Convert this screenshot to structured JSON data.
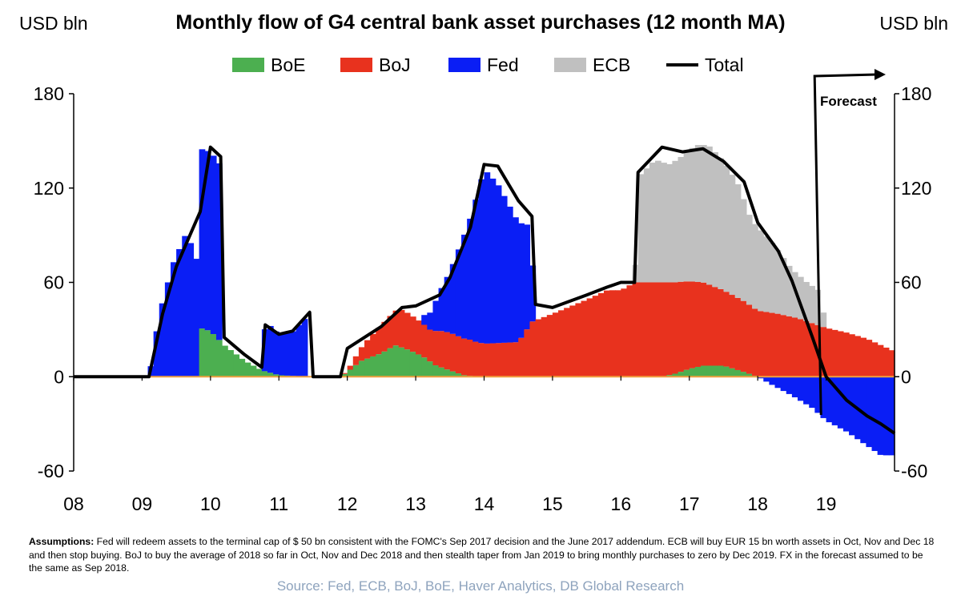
{
  "header": {
    "title": "Monthly flow of G4 central bank asset purchases (12 month MA)",
    "unit_left": "USD bln",
    "unit_right": "USD bln"
  },
  "legend": {
    "items": [
      {
        "label": "BoE",
        "color": "#4caf50"
      },
      {
        "label": "BoJ",
        "color": "#e8321e"
      },
      {
        "label": "Fed",
        "color": "#0a1ef5"
      },
      {
        "label": "ECB",
        "color": "#c0c0c0"
      },
      {
        "label": "Total",
        "color": "#000000"
      }
    ]
  },
  "chart_data": {
    "type": "area",
    "stacked": true,
    "title": "Monthly flow of G4 central bank asset purchases (12 month MA)",
    "ylabel_left": "USD bln",
    "ylabel_right": "USD bln",
    "ylim": [
      -60,
      180
    ],
    "yticks": [
      -60,
      0,
      60,
      120,
      180
    ],
    "xlim": [
      2008.0,
      2020.0
    ],
    "xtick_labels": [
      "08",
      "09",
      "10",
      "11",
      "12",
      "13",
      "14",
      "15",
      "16",
      "17",
      "18",
      "19"
    ],
    "annotation": "Forecast",
    "forecast_start": 2018.75,
    "colors": {
      "BoE": "#4caf50",
      "BoJ": "#e8321e",
      "Fed": "#0a1ef5",
      "ECB": "#c0c0c0",
      "Total": "#000000"
    },
    "series": [
      {
        "name": "BoE",
        "points": [
          [
            2008.0,
            0
          ],
          [
            2009.05,
            0
          ],
          [
            2009.8,
            0
          ],
          [
            2009.85,
            31
          ],
          [
            2010.0,
            29
          ],
          [
            2010.2,
            20
          ],
          [
            2010.5,
            10
          ],
          [
            2010.75,
            4
          ],
          [
            2011.0,
            1
          ],
          [
            2011.4,
            0
          ],
          [
            2011.9,
            0
          ],
          [
            2012.0,
            3
          ],
          [
            2012.2,
            10
          ],
          [
            2012.5,
            15
          ],
          [
            2012.7,
            20
          ],
          [
            2012.9,
            17
          ],
          [
            2013.1,
            13
          ],
          [
            2013.3,
            7
          ],
          [
            2013.5,
            4
          ],
          [
            2013.7,
            1
          ],
          [
            2013.9,
            0
          ],
          [
            2016.6,
            0
          ],
          [
            2016.8,
            2
          ],
          [
            2017.0,
            5
          ],
          [
            2017.2,
            7
          ],
          [
            2017.5,
            7
          ],
          [
            2017.8,
            3
          ],
          [
            2018.0,
            0
          ],
          [
            2020.0,
            0
          ]
        ]
      },
      {
        "name": "BoJ",
        "points": [
          [
            2008.0,
            0
          ],
          [
            2011.9,
            0
          ],
          [
            2012.0,
            1
          ],
          [
            2012.3,
            12
          ],
          [
            2012.5,
            18
          ],
          [
            2012.8,
            24
          ],
          [
            2013.0,
            22
          ],
          [
            2013.2,
            20
          ],
          [
            2013.35,
            23
          ],
          [
            2013.5,
            24
          ],
          [
            2013.8,
            23
          ],
          [
            2014.0,
            21
          ],
          [
            2014.5,
            22
          ],
          [
            2014.7,
            35
          ],
          [
            2015.0,
            40
          ],
          [
            2015.5,
            49
          ],
          [
            2015.8,
            55
          ],
          [
            2016.0,
            55
          ],
          [
            2016.2,
            60
          ],
          [
            2016.6,
            60
          ],
          [
            2016.9,
            57
          ],
          [
            2017.2,
            53
          ],
          [
            2017.5,
            48
          ],
          [
            2017.8,
            45
          ],
          [
            2018.0,
            42
          ],
          [
            2018.3,
            40
          ],
          [
            2018.6,
            37
          ],
          [
            2018.8,
            34
          ],
          [
            2019.0,
            31
          ],
          [
            2019.3,
            28
          ],
          [
            2019.6,
            24
          ],
          [
            2019.8,
            20
          ],
          [
            2020.0,
            16
          ]
        ]
      },
      {
        "name": "Fed",
        "points": [
          [
            2008.0,
            0
          ],
          [
            2009.1,
            0
          ],
          [
            2009.25,
            40
          ],
          [
            2009.45,
            72
          ],
          [
            2009.65,
            92
          ],
          [
            2009.8,
            74
          ],
          [
            2009.85,
            114
          ],
          [
            2010.0,
            114
          ],
          [
            2010.15,
            112
          ],
          [
            2010.2,
            0
          ],
          [
            2010.75,
            0
          ],
          [
            2010.8,
            32
          ],
          [
            2011.0,
            26
          ],
          [
            2011.2,
            28
          ],
          [
            2011.4,
            38
          ],
          [
            2011.45,
            0
          ],
          [
            2013.05,
            0
          ],
          [
            2013.1,
            5
          ],
          [
            2013.2,
            10
          ],
          [
            2013.35,
            25
          ],
          [
            2013.5,
            39
          ],
          [
            2013.8,
            78
          ],
          [
            2014.0,
            111
          ],
          [
            2014.2,
            101
          ],
          [
            2014.5,
            76
          ],
          [
            2014.7,
            61
          ],
          [
            2014.72,
            0
          ],
          [
            2018.0,
            0
          ],
          [
            2018.2,
            -5
          ],
          [
            2018.5,
            -12
          ],
          [
            2018.8,
            -20
          ],
          [
            2019.0,
            -28
          ],
          [
            2019.3,
            -35
          ],
          [
            2019.6,
            -44
          ],
          [
            2019.8,
            -50
          ],
          [
            2020.0,
            -50
          ]
        ]
      },
      {
        "name": "ECB",
        "points": [
          [
            2008.0,
            0
          ],
          [
            2016.2,
            0
          ],
          [
            2016.25,
            67
          ],
          [
            2016.5,
            78
          ],
          [
            2016.7,
            75
          ],
          [
            2016.9,
            80
          ],
          [
            2017.1,
            87
          ],
          [
            2017.3,
            88
          ],
          [
            2017.5,
            82
          ],
          [
            2017.7,
            73
          ],
          [
            2017.9,
            55
          ],
          [
            2018.0,
            53
          ],
          [
            2018.2,
            45
          ],
          [
            2018.5,
            30
          ],
          [
            2018.7,
            25
          ],
          [
            2018.9,
            22
          ],
          [
            2019.0,
            0
          ],
          [
            2020.0,
            0
          ]
        ]
      },
      {
        "name": "Total",
        "points": [
          [
            2008.0,
            0
          ],
          [
            2009.1,
            0
          ],
          [
            2009.3,
            40
          ],
          [
            2009.5,
            70
          ],
          [
            2009.7,
            90
          ],
          [
            2009.85,
            105
          ],
          [
            2010.0,
            146
          ],
          [
            2010.15,
            140
          ],
          [
            2010.2,
            25
          ],
          [
            2010.5,
            14
          ],
          [
            2010.75,
            6
          ],
          [
            2010.8,
            33
          ],
          [
            2011.0,
            27
          ],
          [
            2011.2,
            29
          ],
          [
            2011.45,
            41
          ],
          [
            2011.5,
            0
          ],
          [
            2011.9,
            0
          ],
          [
            2012.0,
            18
          ],
          [
            2012.5,
            32
          ],
          [
            2012.8,
            44
          ],
          [
            2013.0,
            45
          ],
          [
            2013.35,
            52
          ],
          [
            2013.5,
            63
          ],
          [
            2013.8,
            95
          ],
          [
            2014.0,
            135
          ],
          [
            2014.2,
            134
          ],
          [
            2014.5,
            112
          ],
          [
            2014.7,
            102
          ],
          [
            2014.75,
            46
          ],
          [
            2015.0,
            44
          ],
          [
            2015.5,
            52
          ],
          [
            2015.8,
            57
          ],
          [
            2016.0,
            60
          ],
          [
            2016.2,
            60
          ],
          [
            2016.25,
            130
          ],
          [
            2016.6,
            146
          ],
          [
            2016.9,
            143
          ],
          [
            2017.2,
            145
          ],
          [
            2017.5,
            137
          ],
          [
            2017.8,
            124
          ],
          [
            2018.0,
            98
          ],
          [
            2018.3,
            80
          ],
          [
            2018.5,
            61
          ],
          [
            2018.8,
            25
          ],
          [
            2019.0,
            0
          ],
          [
            2019.3,
            -15
          ],
          [
            2019.6,
            -25
          ],
          [
            2019.8,
            -30
          ],
          [
            2020.0,
            -36
          ]
        ]
      }
    ]
  },
  "footer": {
    "assumptions_label": "Assumptions:",
    "assumptions_text": "Fed will redeem assets to the terminal cap of $ 50 bn consistent with the FOMC's Sep 2017 decision and the June 2017 addendum. ECB will buy EUR 15 bn worth assets in Oct, Nov and Dec 18 and then stop buying. BoJ to buy the average of 2018 so far in Oct, Nov and Dec 2018 and then stealth taper from Jan 2019 to bring monthly purchases to zero by Dec 2019. FX in the forecast assumed to be the same as Sep 2018.",
    "source": "Source: Fed, ECB, BoJ, BoE, Haver Analytics, DB Global Research"
  }
}
